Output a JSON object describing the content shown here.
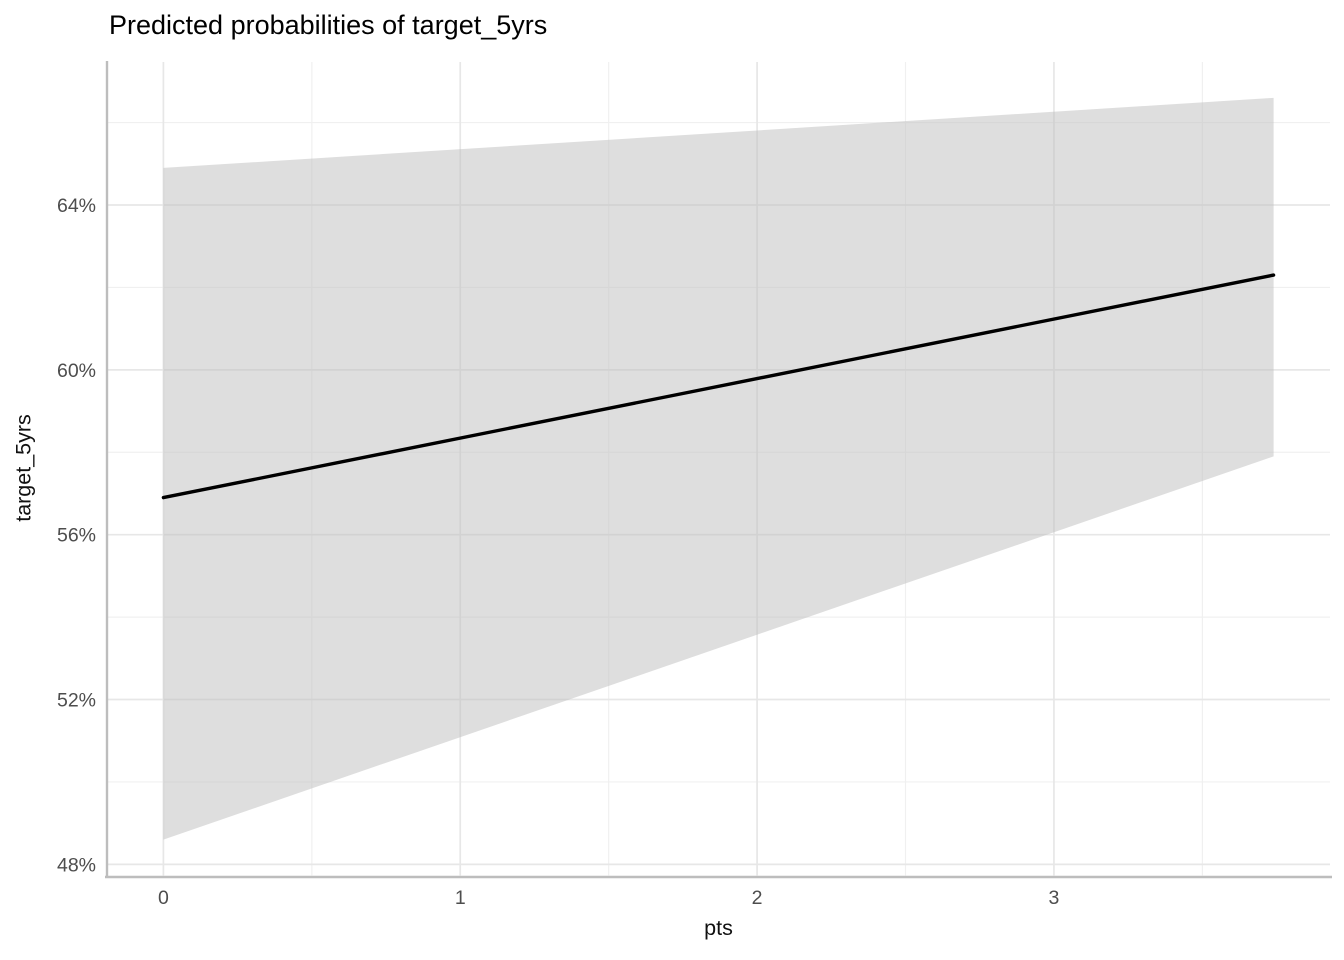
{
  "chart_data": {
    "type": "line",
    "title": "Predicted probabilities of target_5yrs",
    "xlabel": "pts",
    "ylabel": "target_5yrs",
    "xlim": [
      -0.19,
      3.93
    ],
    "ylim": [
      47.73,
      67.47
    ],
    "x_major_ticks": [
      0,
      1,
      2,
      3
    ],
    "x_tick_labels": [
      "0",
      "1",
      "2",
      "3"
    ],
    "x_minor_ticks": [
      0.5,
      1.5,
      2.5,
      3.5
    ],
    "y_major_ticks": [
      48,
      52,
      56,
      60,
      64
    ],
    "y_tick_labels": [
      "48%",
      "52%",
      "56%",
      "60%",
      "64%"
    ],
    "y_minor_ticks": [
      50,
      54,
      58,
      62,
      66
    ],
    "grid": true,
    "legend": "none",
    "series": [
      {
        "name": "predicted-probability-fit",
        "x": [
          0,
          3.74
        ],
        "y": [
          56.9,
          62.3
        ]
      }
    ],
    "ribbon": {
      "name": "confidence-interval",
      "x": [
        0,
        3.74
      ],
      "y_upper": [
        64.9,
        66.6
      ],
      "y_lower": [
        48.6,
        57.9
      ]
    },
    "colors": {
      "background": "#FFFFFF",
      "line": "#000000",
      "ribbon_effective": "#DEDEDE",
      "ribbon_base": "#BDBDBD",
      "grid_major": "#E7E7E7",
      "grid_minor": "#F0F0F0",
      "axis_line": "#BDBDBD",
      "tick_text": "#4D4D4D",
      "title_text": "#000000"
    }
  }
}
